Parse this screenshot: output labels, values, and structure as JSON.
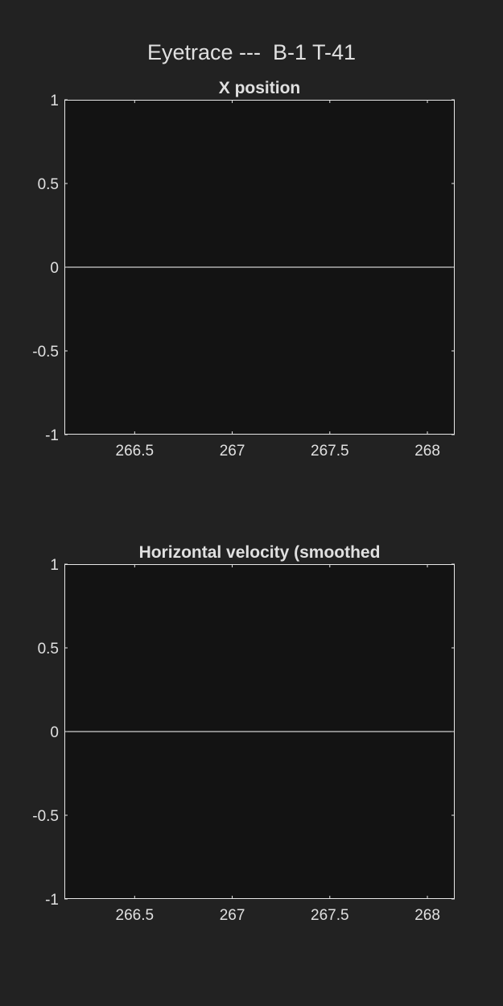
{
  "figure": {
    "title": "Eyetrace ---  B-1 T-41"
  },
  "colors": {
    "figure_bg": "#222222",
    "axes_bg": "#131313",
    "axis_line": "#e6e6e6",
    "text": "#e0e0e0",
    "data_line": "#ffffff"
  },
  "chart_data": [
    {
      "type": "line",
      "title": "X position",
      "xlabel": "",
      "ylabel": "",
      "xlim": [
        266.14,
        268.14
      ],
      "ylim": [
        -1,
        1
      ],
      "xticks": [
        266.5,
        267,
        267.5,
        268
      ],
      "xtick_labels": [
        "266.5",
        "267",
        "267.5",
        "268"
      ],
      "yticks": [
        1,
        0.5,
        0,
        -0.5,
        -1
      ],
      "ytick_labels": [
        "1",
        "0.5",
        "0",
        "-0.5",
        "-1"
      ],
      "grid": false,
      "series": [
        {
          "x": [
            266.14,
            268.14
          ],
          "y": [
            0,
            0
          ]
        }
      ]
    },
    {
      "type": "line",
      "title": "Horizontal velocity (smoothed",
      "xlabel": "",
      "ylabel": "",
      "xlim": [
        266.14,
        268.14
      ],
      "ylim": [
        -1,
        1
      ],
      "xticks": [
        266.5,
        267,
        267.5,
        268
      ],
      "xtick_labels": [
        "266.5",
        "267",
        "267.5",
        "268"
      ],
      "yticks": [
        1,
        0.5,
        0,
        -0.5,
        -1
      ],
      "ytick_labels": [
        "1",
        "0.5",
        "0",
        "-0.5",
        "-1"
      ],
      "grid": false,
      "series": [
        {
          "x": [
            266.14,
            268.14
          ],
          "y": [
            0,
            0
          ]
        }
      ]
    }
  ]
}
